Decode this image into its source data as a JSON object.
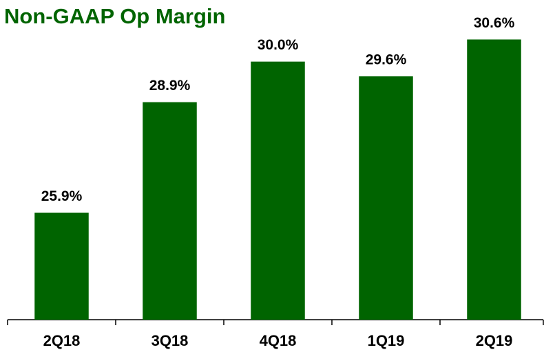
{
  "chart_data": {
    "type": "bar",
    "title": "Non-GAAP Op Margin",
    "categories": [
      "2Q18",
      "3Q18",
      "4Q18",
      "1Q19",
      "2Q19"
    ],
    "values": [
      25.9,
      28.9,
      30.0,
      29.6,
      30.6
    ],
    "value_labels": [
      "25.9%",
      "28.9%",
      "30.0%",
      "29.6%",
      "30.6%"
    ],
    "color": "#006400",
    "ylim": [
      23,
      31
    ]
  }
}
